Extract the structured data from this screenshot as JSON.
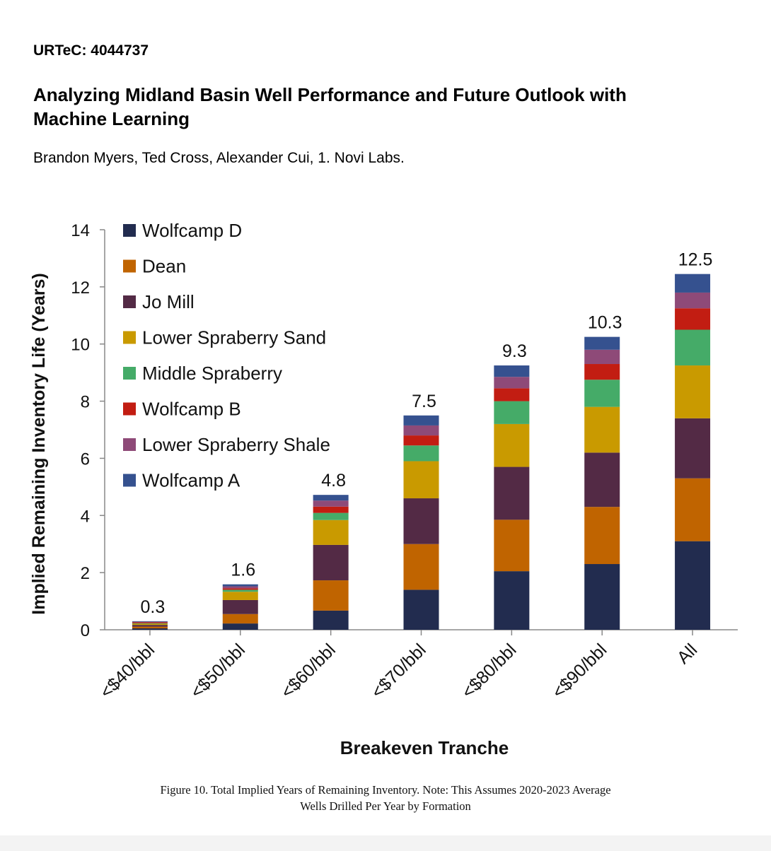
{
  "header": {
    "paper_id": "URTeC: 4044737",
    "title_line1": "Analyzing Midland Basin Well Performance and Future Outlook with",
    "title_line2": "Machine Learning",
    "authors": "Brandon Myers, Ted Cross, Alexander Cui, 1. Novi Labs."
  },
  "caption": {
    "line1": "Figure 10. Total Implied Years of Remaining Inventory. Note: This Assumes 2020-2023 Average",
    "line2": "Wells Drilled Per Year by Formation"
  },
  "chart_data": {
    "type": "bar",
    "stacked": true,
    "title": "",
    "xlabel": "Breakeven Tranche",
    "ylabel": "Implied Remaining Inventory Life (Years)",
    "ylim": [
      0,
      14
    ],
    "yticks": [
      0,
      2,
      4,
      6,
      8,
      10,
      12,
      14
    ],
    "grid": false,
    "legend_position": "top-left",
    "categories": [
      "<$40/bbl",
      "<$50/bbl",
      "<$60/bbl",
      "<$70/bbl",
      "<$80/bbl",
      "<$90/bbl",
      "All"
    ],
    "totals": [
      "0.3",
      "1.6",
      "4.8",
      "7.5",
      "9.3",
      "10.3",
      "12.5"
    ],
    "series": [
      {
        "name": "Wolfcamp D",
        "color": "#222c4f",
        "values": [
          0.05,
          0.22,
          0.67,
          1.4,
          2.05,
          2.3,
          3.1
        ]
      },
      {
        "name": "Dean",
        "color": "#c06400",
        "values": [
          0.06,
          0.33,
          1.06,
          1.6,
          1.8,
          2.0,
          2.2
        ]
      },
      {
        "name": "Jo Mill",
        "color": "#532a45",
        "values": [
          0.06,
          0.49,
          1.24,
          1.6,
          1.85,
          1.9,
          2.1
        ]
      },
      {
        "name": "Lower Spraberry Sand",
        "color": "#c99a00",
        "values": [
          0.04,
          0.29,
          0.87,
          1.3,
          1.5,
          1.6,
          1.85
        ]
      },
      {
        "name": "Middle Spraberry",
        "color": "#45ab68",
        "values": [
          0.02,
          0.07,
          0.25,
          0.55,
          0.8,
          0.95,
          1.25
        ]
      },
      {
        "name": "Wolfcamp B",
        "color": "#c21d12",
        "values": [
          0.03,
          0.05,
          0.22,
          0.35,
          0.45,
          0.55,
          0.75
        ]
      },
      {
        "name": "Lower Spraberry Shale",
        "color": "#8e4a78",
        "values": [
          0.02,
          0.07,
          0.21,
          0.35,
          0.4,
          0.5,
          0.55
        ]
      },
      {
        "name": "Wolfcamp A",
        "color": "#35518f",
        "values": [
          0.02,
          0.07,
          0.2,
          0.35,
          0.4,
          0.45,
          0.65
        ]
      }
    ]
  }
}
